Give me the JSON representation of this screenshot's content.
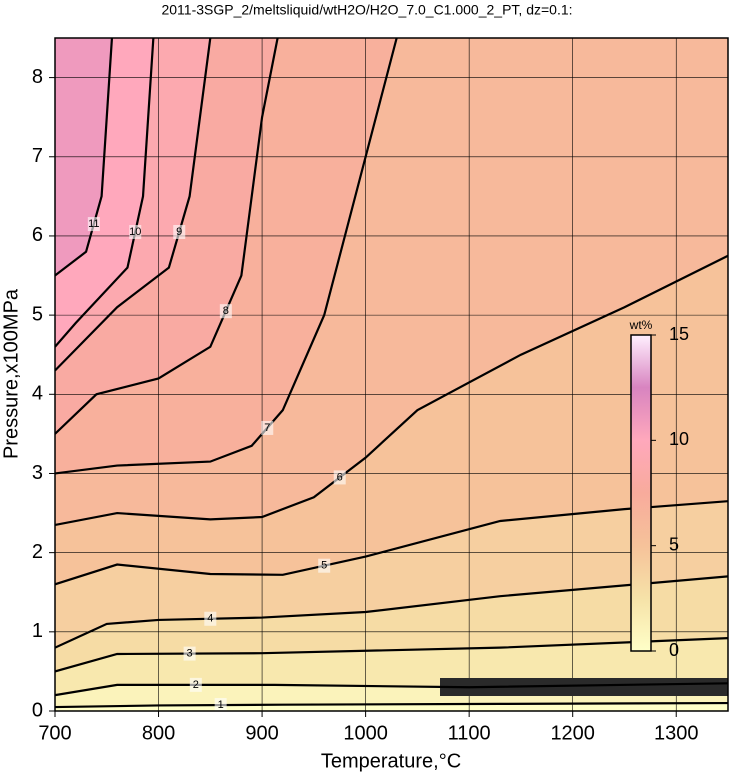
{
  "chart_data": {
    "type": "contour",
    "title": "2011-3SGP_2/meltsliquid/wtH2O/H2O_7.0_C1.000_2_PT, dz=0.1:",
    "x_label": "Temperature,°C",
    "y_label": "Pressure,x100MPa",
    "xlim": [
      700,
      1350
    ],
    "ylim": [
      0,
      8.5
    ],
    "xticks": [
      700,
      800,
      900,
      1000,
      1100,
      1200,
      1300
    ],
    "yticks": [
      0,
      1,
      2,
      3,
      4,
      5,
      6,
      7,
      8
    ],
    "grid": true,
    "colorbar": {
      "label": "wt%",
      "clim": [
        0,
        15
      ],
      "ticks": [
        0,
        5,
        10,
        15
      ],
      "colormap": [
        "#ffffc8",
        "#f6e2a8",
        "#f6c29a",
        "#f8ab9c",
        "#ffa8bc",
        "#d884c0",
        "#fff0ff"
      ]
    },
    "contours": [
      {
        "level": 1,
        "x": [
          700,
          800,
          920,
          1130,
          1350
        ],
        "y": [
          0.05,
          0.07,
          0.08,
          0.09,
          0.1
        ]
      },
      {
        "level": 2,
        "x": [
          700,
          760,
          912,
          1100,
          1350
        ],
        "y": [
          0.2,
          0.33,
          0.33,
          0.3,
          0.35
        ]
      },
      {
        "level": 3,
        "x": [
          700,
          760,
          900,
          1130,
          1350
        ],
        "y": [
          0.5,
          0.72,
          0.73,
          0.8,
          0.92
        ]
      },
      {
        "level": 4,
        "x": [
          700,
          750,
          800,
          900,
          1000,
          1130,
          1350
        ],
        "y": [
          0.8,
          1.1,
          1.15,
          1.18,
          1.25,
          1.45,
          1.7
        ]
      },
      {
        "level": 5,
        "x": [
          700,
          760,
          850,
          920,
          1000,
          1130,
          1250,
          1350
        ],
        "y": [
          1.6,
          1.85,
          1.73,
          1.72,
          1.95,
          2.4,
          2.55,
          2.65
        ]
      },
      {
        "level": 6,
        "x": [
          700,
          760,
          850,
          900,
          950,
          1000,
          1050,
          1150,
          1250,
          1350
        ],
        "y": [
          2.35,
          2.5,
          2.42,
          2.45,
          2.7,
          3.2,
          3.8,
          4.5,
          5.1,
          5.75
        ]
      },
      {
        "level": 7,
        "x": [
          700,
          760,
          850,
          890,
          920,
          960,
          990,
          1030
        ],
        "y": [
          3.0,
          3.1,
          3.15,
          3.35,
          3.8,
          5.0,
          6.5,
          8.5
        ]
      },
      {
        "level": 8,
        "x": [
          700,
          740,
          800,
          850,
          880,
          890,
          900,
          915
        ],
        "y": [
          3.5,
          4.0,
          4.2,
          4.6,
          5.5,
          6.5,
          7.5,
          8.5
        ]
      },
      {
        "level": 9,
        "x": [
          700,
          760,
          810,
          830,
          840,
          850
        ],
        "y": [
          4.3,
          5.1,
          5.6,
          6.5,
          7.5,
          8.5
        ]
      },
      {
        "level": 10,
        "x": [
          700,
          720,
          770,
          785,
          790,
          795
        ],
        "y": [
          4.6,
          4.9,
          5.6,
          6.5,
          7.5,
          8.5
        ]
      },
      {
        "level": 11,
        "x": [
          700,
          730,
          745,
          750,
          755
        ],
        "y": [
          5.5,
          5.8,
          6.5,
          7.5,
          8.5
        ]
      }
    ]
  }
}
